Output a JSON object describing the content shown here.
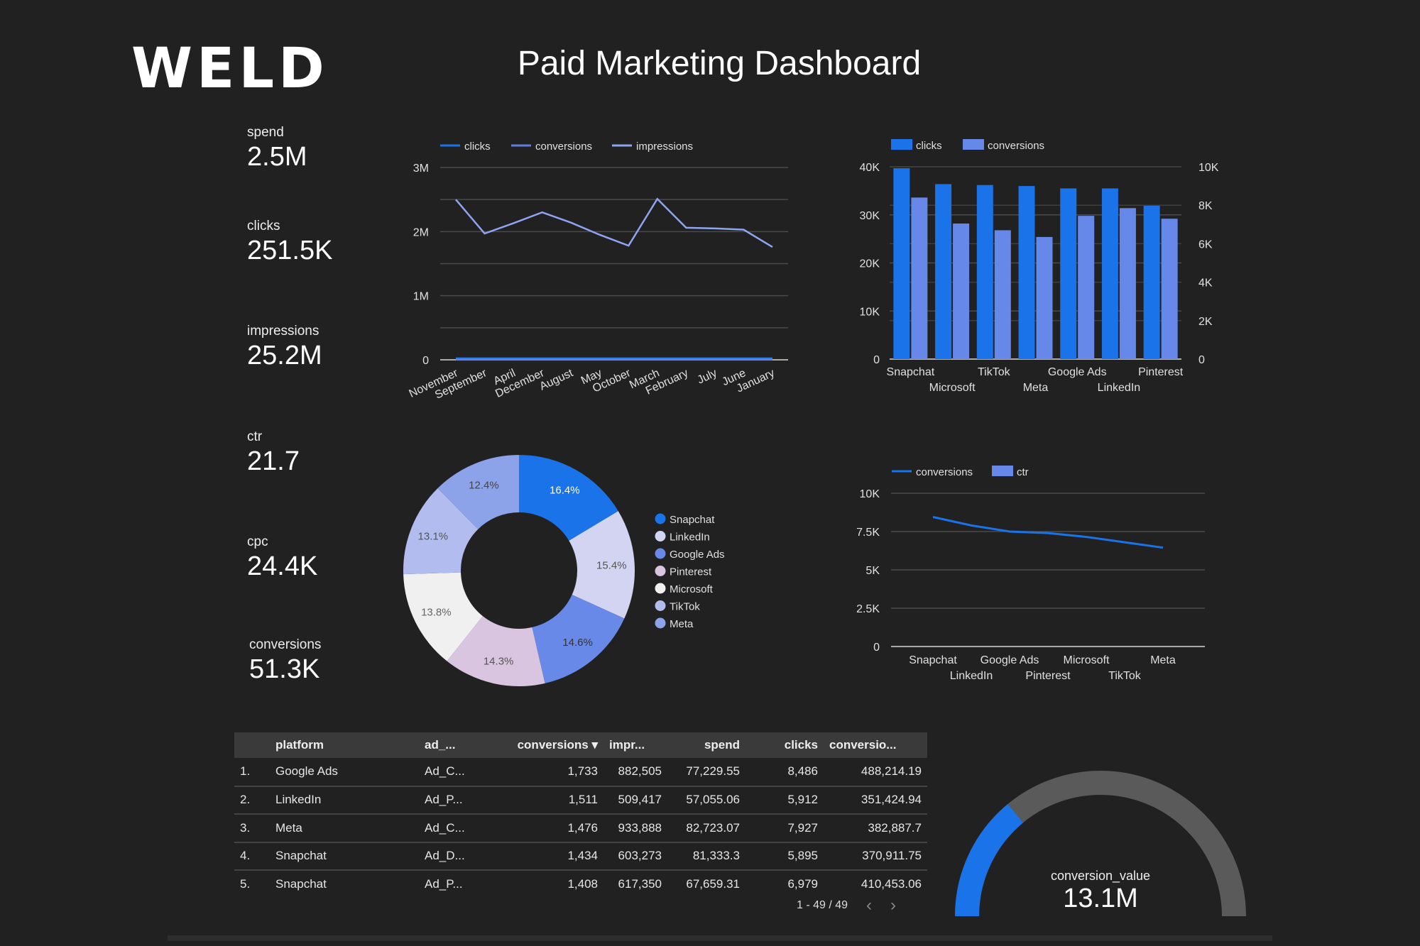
{
  "header": {
    "logo": "WELD",
    "title": "Paid Marketing Dashboard"
  },
  "kpis": [
    {
      "label": "spend",
      "value": "2.5M"
    },
    {
      "label": "clicks",
      "value": "251.5K"
    },
    {
      "label": "impressions",
      "value": "25.2M"
    },
    {
      "label": "ctr",
      "value": "21.7"
    },
    {
      "label": "cpc",
      "value": "24.4K"
    },
    {
      "label": "conversions",
      "value": "51.3K"
    }
  ],
  "chart_data": [
    {
      "type": "line",
      "title": "",
      "categories": [
        "November",
        "September",
        "April",
        "December",
        "August",
        "May",
        "October",
        "March",
        "February",
        "July",
        "June",
        "January"
      ],
      "series": [
        {
          "name": "clicks",
          "color": "#1a73e8",
          "values": [
            21000,
            21000,
            21000,
            21000,
            21000,
            21000,
            21000,
            21000,
            21000,
            21000,
            21000,
            21000
          ]
        },
        {
          "name": "conversions",
          "color": "#5f7fe0",
          "values": [
            4300,
            4300,
            4300,
            4300,
            4300,
            4300,
            4300,
            4300,
            4300,
            4300,
            4300,
            4300
          ]
        },
        {
          "name": "impressions",
          "color": "#8ea4f0",
          "values": [
            2500000,
            1970000,
            2130000,
            2300000,
            2140000,
            1950000,
            1780000,
            2510000,
            2060000,
            2050000,
            2030000,
            1760000
          ]
        }
      ],
      "yticks": [
        {
          "v": 0,
          "label": "0"
        },
        {
          "v": 1000000,
          "label": "1M"
        },
        {
          "v": 2000000,
          "label": "2M"
        },
        {
          "v": 3000000,
          "label": "3M"
        }
      ],
      "ylim": [
        0,
        3000000
      ],
      "legend": "top-left",
      "grid": true
    },
    {
      "type": "bar",
      "categories": [
        "Snapchat",
        "Microsoft",
        "TikTok",
        "Meta",
        "Google Ads",
        "LinkedIn",
        "Pinterest"
      ],
      "series": [
        {
          "name": "clicks",
          "color": "#1a73e8",
          "axis": "left",
          "values": [
            39700,
            36400,
            36200,
            36000,
            35500,
            35500,
            31900
          ]
        },
        {
          "name": "conversions",
          "color": "#6688e8",
          "axis": "right",
          "values": [
            8400,
            7050,
            6700,
            6350,
            7450,
            7850,
            7300
          ]
        }
      ],
      "yticks_left": [
        "0",
        "10K",
        "20K",
        "30K",
        "40K"
      ],
      "ylim_left": [
        0,
        40000
      ],
      "yticks_right": [
        "0",
        "2K",
        "4K",
        "6K",
        "8K",
        "10K"
      ],
      "ylim_right": [
        0,
        10000
      ],
      "legend": "top-left",
      "grid": true
    },
    {
      "type": "pie",
      "donut": true,
      "slices": [
        {
          "label": "Snapchat",
          "value": 16.4,
          "text": "16.4%",
          "color": "#1a73e8",
          "text_color": "#ffffff"
        },
        {
          "label": "LinkedIn",
          "value": 15.4,
          "text": "15.4%",
          "color": "#d2d4f2",
          "text_color": "#555555"
        },
        {
          "label": "Google Ads",
          "value": 14.6,
          "text": "14.6%",
          "color": "#6889e8",
          "text_color": "#333333"
        },
        {
          "label": "Pinterest",
          "value": 14.3,
          "text": "14.3%",
          "color": "#d9c5e0",
          "text_color": "#555555"
        },
        {
          "label": "Microsoft",
          "value": 13.8,
          "text": "13.8%",
          "color": "#f0f0f0",
          "text_color": "#666666"
        },
        {
          "label": "TikTok",
          "value": 13.1,
          "text": "13.1%",
          "color": "#b3bcef",
          "text_color": "#555555"
        },
        {
          "label": "Meta",
          "value": 12.4,
          "text": "12.4%",
          "color": "#8ca3ea",
          "text_color": "#444444"
        }
      ],
      "legend": "right"
    },
    {
      "type": "line",
      "categories": [
        "Snapchat",
        "LinkedIn",
        "Google Ads",
        "Pinterest",
        "Microsoft",
        "TikTok",
        "Meta"
      ],
      "series": [
        {
          "name": "conversions",
          "color": "#1a73e8",
          "values": [
            8450,
            7900,
            7500,
            7400,
            7150,
            6800,
            6450
          ]
        }
      ],
      "legend_extra": {
        "name": "ctr",
        "color": "#6688e8"
      },
      "yticks": [
        {
          "v": 0,
          "label": "0"
        },
        {
          "v": 2500,
          "label": "2.5K"
        },
        {
          "v": 5000,
          "label": "5K"
        },
        {
          "v": 7500,
          "label": "7.5K"
        },
        {
          "v": 10000,
          "label": "10K"
        }
      ],
      "ylim": [
        0,
        10000
      ],
      "legend": "top-left",
      "grid": true
    }
  ],
  "table": {
    "headers": [
      "",
      "platform",
      "ad_...",
      "conversions ▾",
      "impr...",
      "spend",
      "clicks",
      "conversio..."
    ],
    "rows": [
      [
        "1.",
        "Google Ads",
        "Ad_C...",
        "1,733",
        "882,505",
        "77,229.55",
        "8,486",
        "488,214.19"
      ],
      [
        "2.",
        "LinkedIn",
        "Ad_P...",
        "1,511",
        "509,417",
        "57,055.06",
        "5,912",
        "351,424.94"
      ],
      [
        "3.",
        "Meta",
        "Ad_C...",
        "1,476",
        "933,888",
        "82,723.07",
        "7,927",
        "382,887.7"
      ],
      [
        "4.",
        "Snapchat",
        "Ad_D...",
        "1,434",
        "603,273",
        "81,333.3",
        "5,895",
        "370,911.75"
      ],
      [
        "5.",
        "Snapchat",
        "Ad_P...",
        "1,408",
        "617,350",
        "67,659.31",
        "6,979",
        "410,453.06"
      ]
    ],
    "pagination": "1 - 49 / 49",
    "prev": "‹",
    "next": "›"
  },
  "gauge": {
    "label": "conversion_value",
    "value": "13.1M",
    "fraction": 0.28,
    "fill_color": "#1a73e8",
    "track_color": "#5a5a5a"
  }
}
